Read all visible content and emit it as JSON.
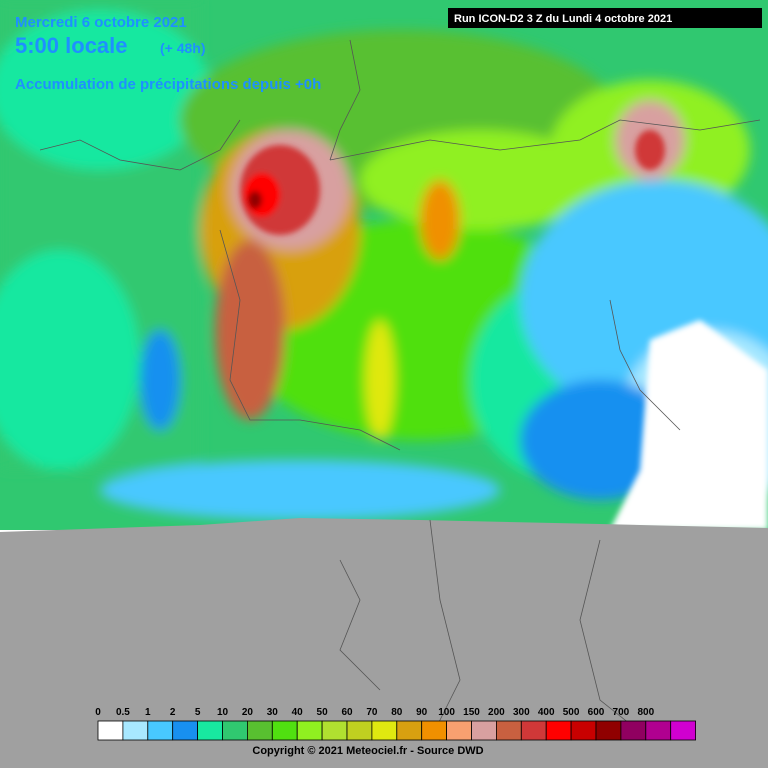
{
  "header": {
    "date": "Mercredi 6 octobre 2021",
    "time": "5:00 locale",
    "lead": "(+ 48h)",
    "product": "Accumulation de précipitations depuis +0h",
    "run": "Run ICON-D2 3 Z du Lundi 4 octobre 2021"
  },
  "legend": {
    "items": [
      {
        "label": 0,
        "color": "#ffffff"
      },
      {
        "label": 0.5,
        "color": "#a8e8ff"
      },
      {
        "label": 1,
        "color": "#48c8ff"
      },
      {
        "label": 2,
        "color": "#1890f0"
      },
      {
        "label": 5,
        "color": "#18e8a0"
      },
      {
        "label": 10,
        "color": "#30c870"
      },
      {
        "label": 20,
        "color": "#58c030"
      },
      {
        "label": 30,
        "color": "#50e010"
      },
      {
        "label": 40,
        "color": "#90f020"
      },
      {
        "label": 50,
        "color": "#b0e030"
      },
      {
        "label": 60,
        "color": "#c0d020"
      },
      {
        "label": 70,
        "color": "#e0e810"
      },
      {
        "label": 80,
        "color": "#d8a010"
      },
      {
        "label": 90,
        "color": "#f09000"
      },
      {
        "label": 100,
        "color": "#f8a070"
      },
      {
        "label": 150,
        "color": "#d8a0a0"
      },
      {
        "label": 200,
        "color": "#c86040"
      },
      {
        "label": 300,
        "color": "#d03838"
      },
      {
        "label": 400,
        "color": "#ff0000"
      },
      {
        "label": 500,
        "color": "#c80000"
      },
      {
        "label": 600,
        "color": "#900000"
      },
      {
        "label": 700,
        "color": "#900060"
      },
      {
        "label": 800,
        "color": "#b00090"
      }
    ],
    "last_color": "#d000d0"
  },
  "footer": "Copyright © 2021 Meteociel.fr - Source DWD"
}
